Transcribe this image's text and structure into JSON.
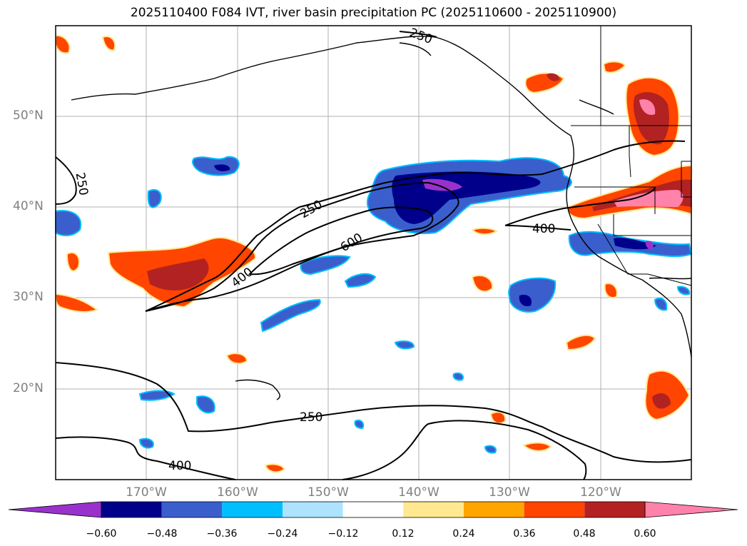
{
  "title": "2025110400 F084 IVT, river basin precipitation PC (2025110600 - 2025110900)",
  "lat_labels": [
    "50°N",
    "40°N",
    "30°N",
    "20°N"
  ],
  "lon_labels": [
    "170°W",
    "160°W",
    "150°W",
    "140°W",
    "130°W",
    "120°W"
  ],
  "contour_labels": [
    "250",
    "250",
    "600",
    "400",
    "400",
    "250",
    "400",
    "250"
  ],
  "colorbar": {
    "ticks": [
      "−0.60",
      "−0.48",
      "−0.36",
      "−0.24",
      "−0.12",
      "0.12",
      "0.24",
      "0.36",
      "0.48",
      "0.60"
    ],
    "colors": [
      "#9932CC",
      "#00008B",
      "#3A5FCD",
      "#00BFFF",
      "#ADE3FF",
      "#FFFFFF",
      "#FFE88F",
      "#FFA500",
      "#FF4500",
      "#B22222",
      "#FF82AB"
    ]
  }
}
